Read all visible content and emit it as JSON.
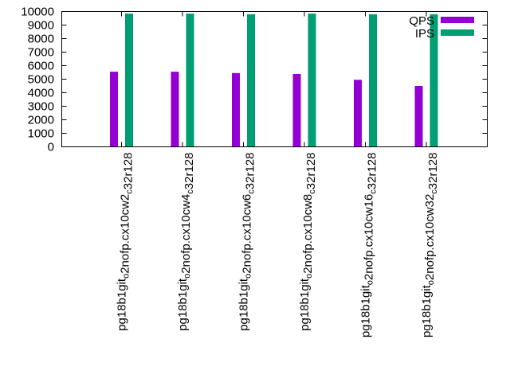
{
  "chart_data": {
    "type": "bar",
    "title": "",
    "xlabel": "",
    "ylabel": "",
    "ylim": [
      0,
      10000
    ],
    "yticks": [
      0,
      1000,
      2000,
      3000,
      4000,
      5000,
      6000,
      7000,
      8000,
      9000,
      10000
    ],
    "grid": false,
    "legend_position": "top-right",
    "categories": [
      "pg18b1git_o2nofp.cx10cw2_c32r128",
      "pg18b1git_o2nofp.cx10cw4_c32r128",
      "pg18b1git_o2nofp.cx10cw6_c32r128",
      "pg18b1git_o2nofp.cx10cw8_c32r128",
      "pg18b1git_o2nofp.cx10cw16_c32r128",
      "pg18b1git_o2nofp.cx10cw32_c32r128"
    ],
    "series": [
      {
        "name": "QPS",
        "color": "#9400d3",
        "values": [
          5550,
          5550,
          5450,
          5380,
          4950,
          4500
        ]
      },
      {
        "name": "IPS",
        "color": "#009e73",
        "values": [
          9850,
          9850,
          9800,
          9850,
          9800,
          9800
        ]
      }
    ]
  }
}
